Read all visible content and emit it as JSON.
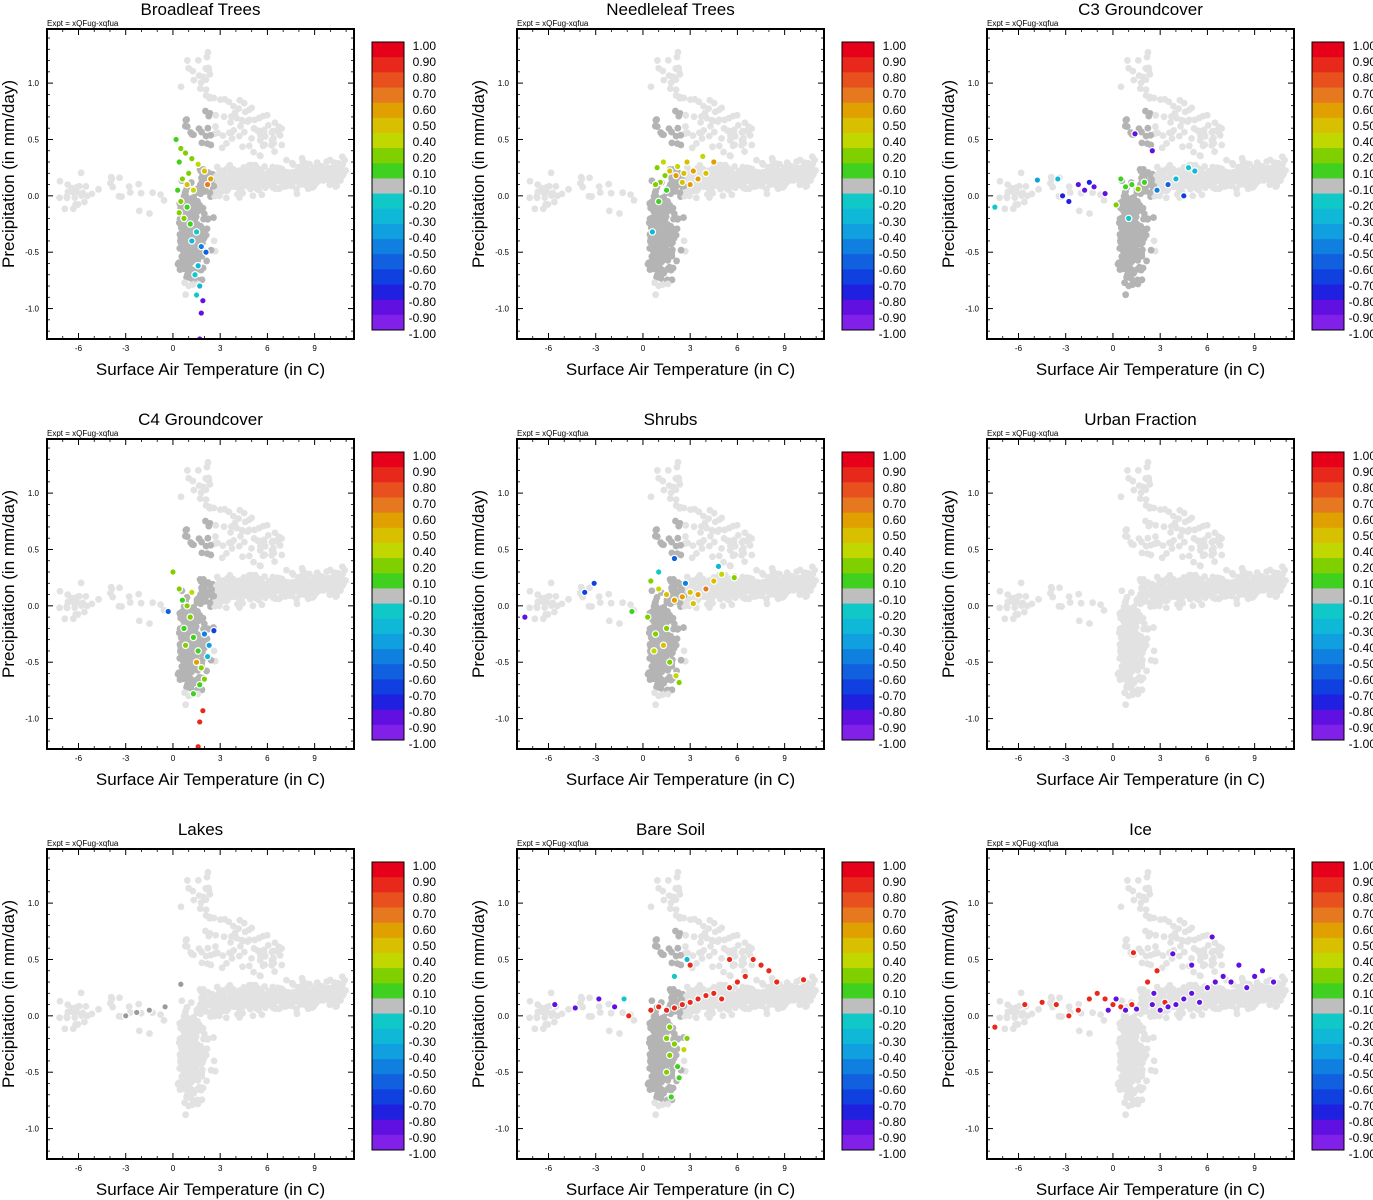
{
  "figure": {
    "expt_label": "Expt = xQFug-xqfua",
    "xlabel": "Surface Air Temperature (in C)",
    "ylabel": "Precipitation (in mm/day)",
    "xlim": [
      -8,
      11.5
    ],
    "ylim": [
      -1.27,
      1.48
    ],
    "xticks": [
      -6,
      -3,
      0,
      3,
      6,
      9
    ],
    "yticks": [
      -1.0,
      -0.5,
      0.0,
      0.5,
      1.0
    ],
    "colorbar_labels": [
      "1.00",
      "0.90",
      "0.80",
      "0.70",
      "0.60",
      "0.50",
      "0.40",
      "0.20",
      "0.10",
      "-0.10",
      "-0.20",
      "-0.30",
      "-0.40",
      "-0.50",
      "-0.60",
      "-0.70",
      "-0.80",
      "-0.90",
      "-1.00"
    ],
    "colorbar_colors": [
      "#e6001a",
      "#e8281a",
      "#e8501e",
      "#e67820",
      "#e0a000",
      "#d8c000",
      "#c0d800",
      "#80d000",
      "#40d020",
      "#bebebe",
      "#10c8c8",
      "#10b8d8",
      "#10a0e0",
      "#1080e0",
      "#1060e0",
      "#1040e0",
      "#2020e0",
      "#6010e0",
      "#8020e8"
    ],
    "base_color": "#e2e2e2",
    "veg_gray": "#b4b4b4"
  },
  "chart_data": [
    {
      "type": "scatter",
      "title": "Broadleaf Trees",
      "xlabel": "Surface Air Temperature (in C)",
      "ylabel": "Precipitation (in mm/day)",
      "gray_region": {
        "xmin": 0.0,
        "xmax": 2.6,
        "ymin": -0.75,
        "ymax": 0.85
      },
      "colored_points": [
        [
          0.2,
          0.5,
          0.1
        ],
        [
          0.5,
          0.42,
          0.2
        ],
        [
          0.4,
          0.3,
          0.1
        ],
        [
          0.8,
          0.38,
          0.2
        ],
        [
          1.2,
          0.33,
          0.3
        ],
        [
          1.6,
          0.28,
          0.4
        ],
        [
          2.0,
          0.22,
          0.5
        ],
        [
          2.4,
          0.15,
          0.6
        ],
        [
          2.2,
          0.1,
          0.7
        ],
        [
          1.0,
          0.2,
          0.3
        ],
        [
          0.6,
          0.15,
          0.2
        ],
        [
          0.3,
          0.05,
          0.1
        ],
        [
          0.5,
          -0.05,
          0.2
        ],
        [
          0.9,
          -0.1,
          0.1
        ],
        [
          1.3,
          0.05,
          0.4
        ],
        [
          0.7,
          -0.2,
          0.3
        ],
        [
          1.1,
          -0.25,
          0.1
        ],
        [
          0.4,
          -0.15,
          0.2
        ],
        [
          1.5,
          -0.32,
          -0.2
        ],
        [
          1.8,
          -0.45,
          -0.5
        ],
        [
          1.6,
          -0.62,
          -0.3
        ],
        [
          1.4,
          -0.7,
          -0.2
        ],
        [
          1.7,
          -0.8,
          -0.3
        ],
        [
          1.5,
          -0.88,
          -0.2
        ],
        [
          1.9,
          -0.93,
          -0.9
        ],
        [
          1.8,
          -1.04,
          -0.9
        ],
        [
          1.7,
          -1.27,
          -0.9
        ],
        [
          2.1,
          -0.5,
          -0.6
        ],
        [
          1.2,
          -0.4,
          -0.3
        ],
        [
          0.9,
          0.1,
          0.5
        ]
      ]
    },
    {
      "type": "scatter",
      "title": "Needleleaf Trees",
      "xlabel": "Surface Air Temperature (in C)",
      "ylabel": "Precipitation (in mm/day)",
      "gray_region": {
        "xmin": 0.0,
        "xmax": 2.6,
        "ymin": -0.75,
        "ymax": 0.85
      },
      "colored_points": [
        [
          0.9,
          0.25,
          0.3
        ],
        [
          1.3,
          0.3,
          0.4
        ],
        [
          1.7,
          0.22,
          0.5
        ],
        [
          2.1,
          0.18,
          0.6
        ],
        [
          2.5,
          0.12,
          0.5
        ],
        [
          3.0,
          0.1,
          0.6
        ],
        [
          3.5,
          0.15,
          0.6
        ],
        [
          4.0,
          0.2,
          0.5
        ],
        [
          4.5,
          0.3,
          0.6
        ],
        [
          3.8,
          0.35,
          0.4
        ],
        [
          1.1,
          0.12,
          0.2
        ],
        [
          0.8,
          0.1,
          0.2
        ],
        [
          1.5,
          0.05,
          0.1
        ],
        [
          2.2,
          0.26,
          0.4
        ],
        [
          2.8,
          0.3,
          0.5
        ],
        [
          1.0,
          -0.05,
          0.1
        ],
        [
          0.6,
          -0.32,
          -0.3
        ],
        [
          1.4,
          0.18,
          0.3
        ],
        [
          3.2,
          0.22,
          0.6
        ],
        [
          2.6,
          0.2,
          0.5
        ]
      ]
    },
    {
      "type": "scatter",
      "title": "C3 Groundcover",
      "xlabel": "Surface Air Temperature (in C)",
      "ylabel": "Precipitation (in mm/day)",
      "gray_region": {
        "xmin": 0.0,
        "xmax": 2.6,
        "ymin": -1.0,
        "ymax": 0.85
      },
      "colored_points": [
        [
          -7.5,
          -0.1,
          -0.2
        ],
        [
          -4.8,
          0.14,
          -0.4
        ],
        [
          -3.5,
          0.15,
          -0.3
        ],
        [
          -3.2,
          0.0,
          -0.8
        ],
        [
          -2.8,
          -0.05,
          -0.8
        ],
        [
          -2.2,
          0.1,
          -0.9
        ],
        [
          -1.8,
          0.05,
          -0.9
        ],
        [
          -1.5,
          0.12,
          -0.8
        ],
        [
          -1.2,
          0.08,
          -0.9
        ],
        [
          -0.5,
          0.02,
          -0.9
        ],
        [
          0.2,
          -0.08,
          0.2
        ],
        [
          0.8,
          0.08,
          0.1
        ],
        [
          1.2,
          0.1,
          0.1
        ],
        [
          1.6,
          0.06,
          0.2
        ],
        [
          2.0,
          0.12,
          0.1
        ],
        [
          2.8,
          0.05,
          -0.5
        ],
        [
          3.5,
          0.1,
          -0.6
        ],
        [
          4.0,
          0.15,
          -0.3
        ],
        [
          4.5,
          0.0,
          -0.7
        ],
        [
          4.8,
          0.25,
          -0.2
        ],
        [
          5.2,
          0.22,
          -0.3
        ],
        [
          2.5,
          0.4,
          -0.9
        ],
        [
          1.4,
          0.55,
          -0.9
        ],
        [
          0.5,
          0.15,
          0.1
        ],
        [
          1.0,
          -0.2,
          -0.2
        ]
      ]
    },
    {
      "type": "scatter",
      "title": "C4 Groundcover",
      "xlabel": "Surface Air Temperature (in C)",
      "ylabel": "Precipitation (in mm/day)",
      "gray_region": {
        "xmin": 0.0,
        "xmax": 2.6,
        "ymin": -0.75,
        "ymax": 0.85
      },
      "colored_points": [
        [
          0.0,
          0.3,
          0.2
        ],
        [
          -0.3,
          -0.05,
          -0.6
        ],
        [
          0.6,
          0.05,
          0.1
        ],
        [
          0.9,
          0.0,
          0.2
        ],
        [
          1.1,
          -0.1,
          0.2
        ],
        [
          0.7,
          -0.2,
          0.1
        ],
        [
          1.3,
          -0.28,
          0.1
        ],
        [
          0.8,
          -0.35,
          0.2
        ],
        [
          1.6,
          -0.4,
          0.1
        ],
        [
          2.0,
          -0.25,
          -0.5
        ],
        [
          2.3,
          -0.35,
          -0.4
        ],
        [
          2.6,
          -0.22,
          -0.7
        ],
        [
          1.5,
          -0.5,
          0.6
        ],
        [
          1.8,
          -0.55,
          0.2
        ],
        [
          2.2,
          -0.45,
          -0.3
        ],
        [
          1.7,
          -0.7,
          0.1
        ],
        [
          1.3,
          -0.78,
          0.1
        ],
        [
          2.0,
          -0.65,
          0.2
        ],
        [
          1.9,
          -0.93,
          0.9
        ],
        [
          1.7,
          -1.03,
          0.9
        ],
        [
          1.6,
          -1.25,
          0.9
        ],
        [
          0.4,
          0.15,
          0.3
        ],
        [
          1.2,
          0.12,
          0.4
        ]
      ]
    },
    {
      "type": "scatter",
      "title": "Shrubs",
      "xlabel": "Surface Air Temperature (in C)",
      "ylabel": "Precipitation (in mm/day)",
      "gray_region": {
        "xmin": 0.0,
        "xmax": 2.6,
        "ymin": -0.75,
        "ymax": 0.85
      },
      "colored_points": [
        [
          -7.5,
          -0.1,
          -0.9
        ],
        [
          -3.7,
          0.12,
          -0.7
        ],
        [
          -3.1,
          0.2,
          -0.7
        ],
        [
          -0.7,
          -0.05,
          0.1
        ],
        [
          0.5,
          0.22,
          0.2
        ],
        [
          1.0,
          0.15,
          0.4
        ],
        [
          1.5,
          0.1,
          0.5
        ],
        [
          2.0,
          0.05,
          0.6
        ],
        [
          2.5,
          0.08,
          0.6
        ],
        [
          3.0,
          0.12,
          0.5
        ],
        [
          3.5,
          0.1,
          0.6
        ],
        [
          4.0,
          0.15,
          0.7
        ],
        [
          4.5,
          0.22,
          0.5
        ],
        [
          5.0,
          0.28,
          0.4
        ],
        [
          5.8,
          0.25,
          0.2
        ],
        [
          4.8,
          0.35,
          -0.3
        ],
        [
          2.7,
          0.2,
          -0.5
        ],
        [
          2.0,
          0.42,
          -0.6
        ],
        [
          1.0,
          0.3,
          -0.2
        ],
        [
          0.8,
          -0.25,
          0.2
        ],
        [
          1.3,
          -0.35,
          0.5
        ],
        [
          0.7,
          -0.4,
          0.4
        ],
        [
          1.7,
          -0.5,
          0.3
        ],
        [
          2.1,
          -0.62,
          0.4
        ],
        [
          2.3,
          -0.68,
          0.3
        ],
        [
          1.5,
          -0.2,
          0.3
        ],
        [
          3.2,
          0.02,
          0.5
        ],
        [
          0.3,
          -0.1,
          0.2
        ]
      ]
    },
    {
      "type": "scatter",
      "title": "Urban Fraction",
      "xlabel": "Surface Air Temperature (in C)",
      "ylabel": "Precipitation (in mm/day)",
      "gray_region": null,
      "colored_points": []
    },
    {
      "type": "scatter",
      "title": "Lakes",
      "xlabel": "Surface Air Temperature (in C)",
      "ylabel": "Precipitation (in mm/day)",
      "gray_region": null,
      "colored_points": [
        [
          -3.0,
          0.0,
          0.0
        ],
        [
          -2.3,
          0.03,
          0.0
        ],
        [
          -1.5,
          0.05,
          0.0
        ],
        [
          0.5,
          0.28,
          0.0
        ],
        [
          -0.5,
          0.08,
          0.0
        ]
      ]
    },
    {
      "type": "scatter",
      "title": "Bare Soil",
      "xlabel": "Surface Air Temperature (in C)",
      "ylabel": "Precipitation (in mm/day)",
      "gray_region": {
        "xmin": 0.0,
        "xmax": 2.6,
        "ymin": -0.75,
        "ymax": 0.85
      },
      "colored_points": [
        [
          -5.6,
          0.1,
          -0.9
        ],
        [
          -4.3,
          0.07,
          -0.9
        ],
        [
          -2.8,
          0.15,
          -0.9
        ],
        [
          -1.8,
          0.08,
          -0.9
        ],
        [
          -1.2,
          0.15,
          -0.2
        ],
        [
          -0.9,
          0.0,
          0.9
        ],
        [
          0.5,
          0.05,
          0.9
        ],
        [
          1.0,
          0.08,
          0.9
        ],
        [
          1.5,
          0.05,
          0.9
        ],
        [
          2.0,
          0.07,
          0.9
        ],
        [
          2.5,
          0.1,
          0.9
        ],
        [
          3.0,
          0.12,
          0.9
        ],
        [
          3.5,
          0.15,
          0.9
        ],
        [
          4.0,
          0.18,
          0.9
        ],
        [
          4.5,
          0.2,
          0.9
        ],
        [
          5.0,
          0.15,
          0.9
        ],
        [
          5.5,
          0.25,
          0.9
        ],
        [
          6.0,
          0.3,
          0.9
        ],
        [
          6.5,
          0.35,
          0.9
        ],
        [
          7.0,
          0.5,
          0.9
        ],
        [
          7.5,
          0.45,
          0.9
        ],
        [
          8.0,
          0.4,
          0.9
        ],
        [
          8.5,
          0.3,
          0.9
        ],
        [
          10.2,
          0.32,
          0.9
        ],
        [
          3.0,
          0.45,
          0.9
        ],
        [
          5.5,
          0.5,
          0.9
        ],
        [
          2.0,
          0.35,
          -0.2
        ],
        [
          2.8,
          0.5,
          -0.3
        ],
        [
          1.7,
          -0.1,
          0.3
        ],
        [
          1.5,
          -0.2,
          0.2
        ],
        [
          2.0,
          -0.25,
          0.2
        ],
        [
          1.7,
          -0.35,
          0.2
        ],
        [
          2.2,
          -0.45,
          0.1
        ],
        [
          1.5,
          -0.5,
          0.2
        ],
        [
          2.3,
          -0.55,
          0.1
        ],
        [
          1.8,
          -0.72,
          0.1
        ],
        [
          2.6,
          -0.3,
          0.4
        ],
        [
          2.8,
          -0.2,
          0.3
        ]
      ]
    },
    {
      "type": "scatter",
      "title": "Ice",
      "xlabel": "Surface Air Temperature (in C)",
      "ylabel": "Precipitation (in mm/day)",
      "gray_region": null,
      "colored_points": [
        [
          -7.5,
          -0.1,
          0.9
        ],
        [
          -5.6,
          0.1,
          0.9
        ],
        [
          -4.5,
          0.12,
          0.9
        ],
        [
          -3.6,
          0.1,
          0.9
        ],
        [
          -2.8,
          0.0,
          0.9
        ],
        [
          -2.2,
          0.05,
          0.9
        ],
        [
          -1.5,
          0.15,
          0.9
        ],
        [
          -0.5,
          0.15,
          0.9
        ],
        [
          0.0,
          0.1,
          0.9
        ],
        [
          0.5,
          0.08,
          0.9
        ],
        [
          1.2,
          0.1,
          0.9
        ],
        [
          1.3,
          0.56,
          0.9
        ],
        [
          2.2,
          0.3,
          0.9
        ],
        [
          2.8,
          0.4,
          0.9
        ],
        [
          3.3,
          0.12,
          0.9
        ],
        [
          -1.0,
          0.2,
          0.9
        ],
        [
          -0.3,
          0.05,
          -0.9
        ],
        [
          0.8,
          0.05,
          -0.9
        ],
        [
          1.5,
          0.06,
          -0.9
        ],
        [
          2.5,
          0.1,
          -0.9
        ],
        [
          3.0,
          0.05,
          -0.9
        ],
        [
          3.5,
          0.08,
          -0.9
        ],
        [
          4.0,
          0.1,
          -0.9
        ],
        [
          4.5,
          0.15,
          -0.9
        ],
        [
          5.0,
          0.2,
          -0.9
        ],
        [
          5.5,
          0.12,
          -0.9
        ],
        [
          6.0,
          0.25,
          -0.9
        ],
        [
          6.5,
          0.3,
          -0.9
        ],
        [
          7.0,
          0.35,
          -0.9
        ],
        [
          7.5,
          0.3,
          -0.9
        ],
        [
          8.0,
          0.45,
          -0.9
        ],
        [
          8.5,
          0.25,
          -0.9
        ],
        [
          9.0,
          0.35,
          -0.9
        ],
        [
          9.5,
          0.4,
          -0.9
        ],
        [
          10.2,
          0.3,
          -0.9
        ],
        [
          6.3,
          0.7,
          -0.9
        ],
        [
          5.0,
          0.45,
          -0.9
        ],
        [
          3.8,
          0.55,
          -0.9
        ],
        [
          2.6,
          0.2,
          -0.9
        ],
        [
          0.2,
          0.15,
          -0.9
        ]
      ]
    }
  ]
}
